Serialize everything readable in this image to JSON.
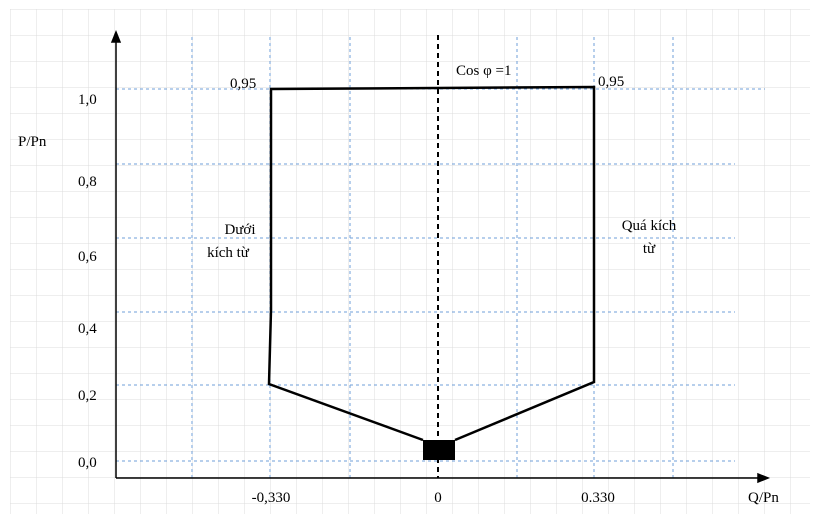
{
  "axes": {
    "y_label": "P/Pn",
    "x_label": "Q/Pn",
    "y_ticks": [
      "1,0",
      "0,8",
      "0,6",
      "0,4",
      "0,2",
      "0,0"
    ],
    "x_ticks": [
      "-0,330",
      "0",
      "0.330"
    ]
  },
  "annotations": {
    "left_pf": "0,95",
    "right_pf": "0,95",
    "center": "Cos φ =1",
    "left_region": [
      "Dưới",
      "kích từ"
    ],
    "right_region": [
      "Quá kích",
      "từ"
    ]
  }
}
